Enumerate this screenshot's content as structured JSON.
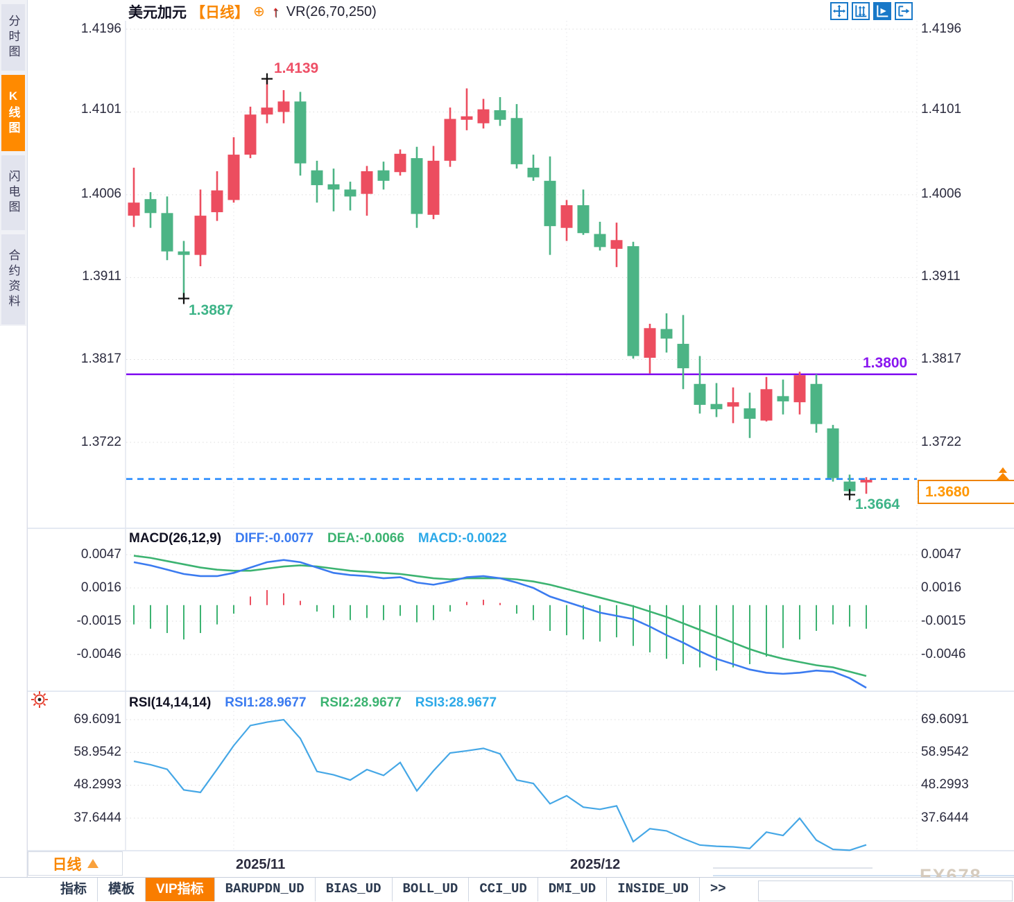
{
  "sidebar": {
    "items": [
      {
        "label": "分时图",
        "active": false
      },
      {
        "label": "K线图",
        "active": true
      },
      {
        "label": "闪电图",
        "active": false
      },
      {
        "label": "合约资料",
        "active": false
      }
    ]
  },
  "header": {
    "symbol": "美元加元",
    "period_tag": "【日线】",
    "plus_icon": "⊕",
    "arrow_icon": "↑",
    "indicator": "VR(26,70,250)"
  },
  "price_axis": {
    "labels": [
      "1.4196",
      "1.4101",
      "1.4006",
      "1.3911",
      "1.3817",
      "1.3722"
    ]
  },
  "macd_axis": [
    "0.0047",
    "0.0016",
    "-0.0015",
    "-0.0046"
  ],
  "rsi_axis": [
    "69.6091",
    "58.9542",
    "48.2993",
    "37.6444"
  ],
  "macd_title": {
    "name": "MACD(26,12,9)",
    "diff": "DIFF:-0.0077",
    "dea": "DEA:-0.0066",
    "macd": "MACD:-0.0022"
  },
  "rsi_title": {
    "name": "RSI(14,14,14)",
    "rsi1": "RSI1:28.9677",
    "rsi2": "RSI2:28.9677",
    "rsi3": "RSI3:28.9677"
  },
  "annotations": {
    "high": "1.4139",
    "low": "1.3887",
    "last_low": "1.3664",
    "hline": "1.3800",
    "price_box": "1.3680"
  },
  "xaxis": {
    "labels": [
      "2025/11",
      "2025/12"
    ],
    "period_label": "日线"
  },
  "tabs": [
    {
      "label": "指标",
      "active": false
    },
    {
      "label": "模板",
      "active": false
    },
    {
      "label": "VIP指标",
      "active": true
    },
    {
      "label": "BARUPDN_UD",
      "active": false
    },
    {
      "label": "BIAS_UD",
      "active": false
    },
    {
      "label": "BOLL_UD",
      "active": false
    },
    {
      "label": "CCI_UD",
      "active": false
    },
    {
      "label": "DMI_UD",
      "active": false
    },
    {
      "label": "INSIDE_UD",
      "active": false
    },
    {
      "label": ">>",
      "active": false
    }
  ],
  "watermark": "FX678",
  "colors": {
    "up": "#ec4d5f",
    "down": "#4cb485",
    "hline": "#7d08f0",
    "last_price_line": "#1e86ff",
    "diff": "#3b7bf0",
    "dea": "#3cb371",
    "macd_hist_pos": "#ec4d5f",
    "macd_hist_neg": "#3cb371",
    "rsi_line": "#45a7e6",
    "accent_orange": "#f98600",
    "grid": "#dcdcdc",
    "axis_text": "#2b2b3e",
    "icon_blue": "#1878c8",
    "marker": "#111111"
  },
  "chart_data": {
    "type": "candlestick",
    "symbol": "美元加元 (USD/CAD)",
    "interval": "日线 (daily)",
    "x_labels": [
      "2025/11",
      "2025/12"
    ],
    "x_label_indices": [
      6,
      26
    ],
    "price_gridlines": [
      1.4196,
      1.4101,
      1.4006,
      1.3911,
      1.3817,
      1.3722
    ],
    "hline": 1.38,
    "last_price": 1.368,
    "candles_ohlc": [
      [
        1.3982,
        1.4037,
        1.3969,
        1.3997
      ],
      [
        1.4001,
        1.4009,
        1.3968,
        1.3985
      ],
      [
        1.3985,
        1.4004,
        1.3931,
        1.3941
      ],
      [
        1.3941,
        1.3953,
        1.3887,
        1.3937
      ],
      [
        1.3937,
        1.4012,
        1.3924,
        1.3982
      ],
      [
        1.3986,
        1.4033,
        1.3976,
        1.4011
      ],
      [
        1.4,
        1.4072,
        1.3997,
        1.4052
      ],
      [
        1.4052,
        1.4107,
        1.4048,
        1.4098
      ],
      [
        1.4098,
        1.4139,
        1.4088,
        1.4106
      ],
      [
        1.4101,
        1.4126,
        1.4088,
        1.4113
      ],
      [
        1.4113,
        1.4124,
        1.4028,
        1.4042
      ],
      [
        1.4034,
        1.4045,
        1.3997,
        1.4017
      ],
      [
        1.4018,
        1.4036,
        1.3987,
        1.4012
      ],
      [
        1.4012,
        1.4021,
        1.3988,
        1.4004
      ],
      [
        1.4007,
        1.4039,
        1.3982,
        1.4033
      ],
      [
        1.4034,
        1.4044,
        1.4012,
        1.4022
      ],
      [
        1.4032,
        1.4058,
        1.4028,
        1.4053
      ],
      [
        1.4048,
        1.4061,
        1.3968,
        1.3984
      ],
      [
        1.3983,
        1.4062,
        1.3978,
        1.4045
      ],
      [
        1.4045,
        1.4106,
        1.4038,
        1.4093
      ],
      [
        1.4092,
        1.4128,
        1.408,
        1.4096
      ],
      [
        1.4088,
        1.4116,
        1.4082,
        1.4104
      ],
      [
        1.4103,
        1.4118,
        1.4085,
        1.4092
      ],
      [
        1.4094,
        1.411,
        1.4036,
        1.4041
      ],
      [
        1.4037,
        1.4052,
        1.4022,
        1.4026
      ],
      [
        1.4022,
        1.405,
        1.3937,
        1.397
      ],
      [
        1.3968,
        1.4,
        1.3953,
        1.3994
      ],
      [
        1.3994,
        1.4012,
        1.396,
        1.3962
      ],
      [
        1.3961,
        1.3975,
        1.3942,
        1.3946
      ],
      [
        1.3944,
        1.3974,
        1.3923,
        1.3954
      ],
      [
        1.3947,
        1.3952,
        1.3818,
        1.3821
      ],
      [
        1.3819,
        1.3858,
        1.3801,
        1.3853
      ],
      [
        1.3852,
        1.387,
        1.3825,
        1.3841
      ],
      [
        1.3835,
        1.3868,
        1.3783,
        1.3807
      ],
      [
        1.3789,
        1.3821,
        1.3755,
        1.3765
      ],
      [
        1.3766,
        1.379,
        1.3751,
        1.376
      ],
      [
        1.3763,
        1.3785,
        1.3744,
        1.3768
      ],
      [
        1.3761,
        1.3779,
        1.3727,
        1.3749
      ],
      [
        1.3747,
        1.3797,
        1.3746,
        1.3783
      ],
      [
        1.3775,
        1.3794,
        1.3754,
        1.3769
      ],
      [
        1.3768,
        1.3803,
        1.3754,
        1.3799
      ],
      [
        1.3789,
        1.38,
        1.3733,
        1.3743
      ],
      [
        1.3738,
        1.3742,
        1.3677,
        1.3681
      ],
      [
        1.3677,
        1.3685,
        1.3662,
        1.3666
      ],
      [
        1.3676,
        1.3682,
        1.3663,
        1.3679
      ]
    ],
    "point_markers": [
      {
        "index": 8,
        "price": 1.4139,
        "kind": "high"
      },
      {
        "index": 3,
        "price": 1.3887,
        "kind": "low"
      },
      {
        "index": 43,
        "price": 1.3662,
        "kind": "low"
      }
    ],
    "macd": {
      "params": [
        26,
        12,
        9
      ],
      "axis": [
        0.0047,
        0.0016,
        -0.0015,
        -0.0046
      ],
      "diff": [
        0.004,
        0.0037,
        0.0033,
        0.0029,
        0.0027,
        0.0027,
        0.003,
        0.0035,
        0.004,
        0.0042,
        0.004,
        0.0035,
        0.003,
        0.0028,
        0.0027,
        0.0025,
        0.0026,
        0.0021,
        0.0019,
        0.0022,
        0.0026,
        0.0027,
        0.0025,
        0.0021,
        0.0016,
        0.0008,
        0.0003,
        -0.0002,
        -0.0007,
        -0.001,
        -0.0013,
        -0.002,
        -0.0028,
        -0.0035,
        -0.0043,
        -0.005,
        -0.0055,
        -0.006,
        -0.0063,
        -0.0064,
        -0.0063,
        -0.0061,
        -0.0062,
        -0.0068,
        -0.0077
      ],
      "dea": [
        0.0046,
        0.0044,
        0.0041,
        0.0038,
        0.0035,
        0.0033,
        0.0032,
        0.0032,
        0.0034,
        0.0036,
        0.0037,
        0.0036,
        0.0034,
        0.0032,
        0.0031,
        0.003,
        0.0029,
        0.0027,
        0.0025,
        0.0024,
        0.0025,
        0.0025,
        0.0025,
        0.0024,
        0.0022,
        0.0019,
        0.0015,
        0.0011,
        0.0007,
        0.0003,
        -0.0001,
        -0.0006,
        -0.0011,
        -0.0017,
        -0.0023,
        -0.0029,
        -0.0035,
        -0.0041,
        -0.0046,
        -0.005,
        -0.0053,
        -0.0056,
        -0.0058,
        -0.0062,
        -0.0066
      ],
      "hist": [
        -0.0018,
        -0.0022,
        -0.0026,
        -0.0032,
        -0.0026,
        -0.0018,
        -0.0008,
        0.0008,
        0.0014,
        0.0011,
        0.0004,
        -0.0006,
        -0.0012,
        -0.0014,
        -0.0012,
        -0.0014,
        -0.001,
        -0.0016,
        -0.0014,
        -0.0006,
        0.0003,
        0.0005,
        0.0002,
        -0.0008,
        -0.0014,
        -0.0024,
        -0.0028,
        -0.0032,
        -0.0034,
        -0.003,
        -0.0038,
        -0.0044,
        -0.005,
        -0.0055,
        -0.0058,
        -0.0061,
        -0.0058,
        -0.0055,
        -0.0048,
        -0.004,
        -0.0032,
        -0.0024,
        -0.0018,
        -0.002,
        -0.0022
      ]
    },
    "rsi": {
      "params": [
        14,
        14,
        14
      ],
      "axis": [
        69.6091,
        58.9542,
        48.2993,
        37.6444
      ],
      "values": [
        56.1,
        55.0,
        53.5,
        46.8,
        46.0,
        53.5,
        61.2,
        67.7,
        68.8,
        69.6,
        63.5,
        52.8,
        51.7,
        50.0,
        53.4,
        51.5,
        55.7,
        46.5,
        53.0,
        58.8,
        59.5,
        60.3,
        58.5,
        50.0,
        48.9,
        42.3,
        44.9,
        41.2,
        40.5,
        41.6,
        30.0,
        34.2,
        33.5,
        31.0,
        28.9,
        28.5,
        28.3,
        27.8,
        33.1,
        32.0,
        37.6,
        30.5,
        27.5,
        27.2,
        28.9677
      ]
    }
  }
}
